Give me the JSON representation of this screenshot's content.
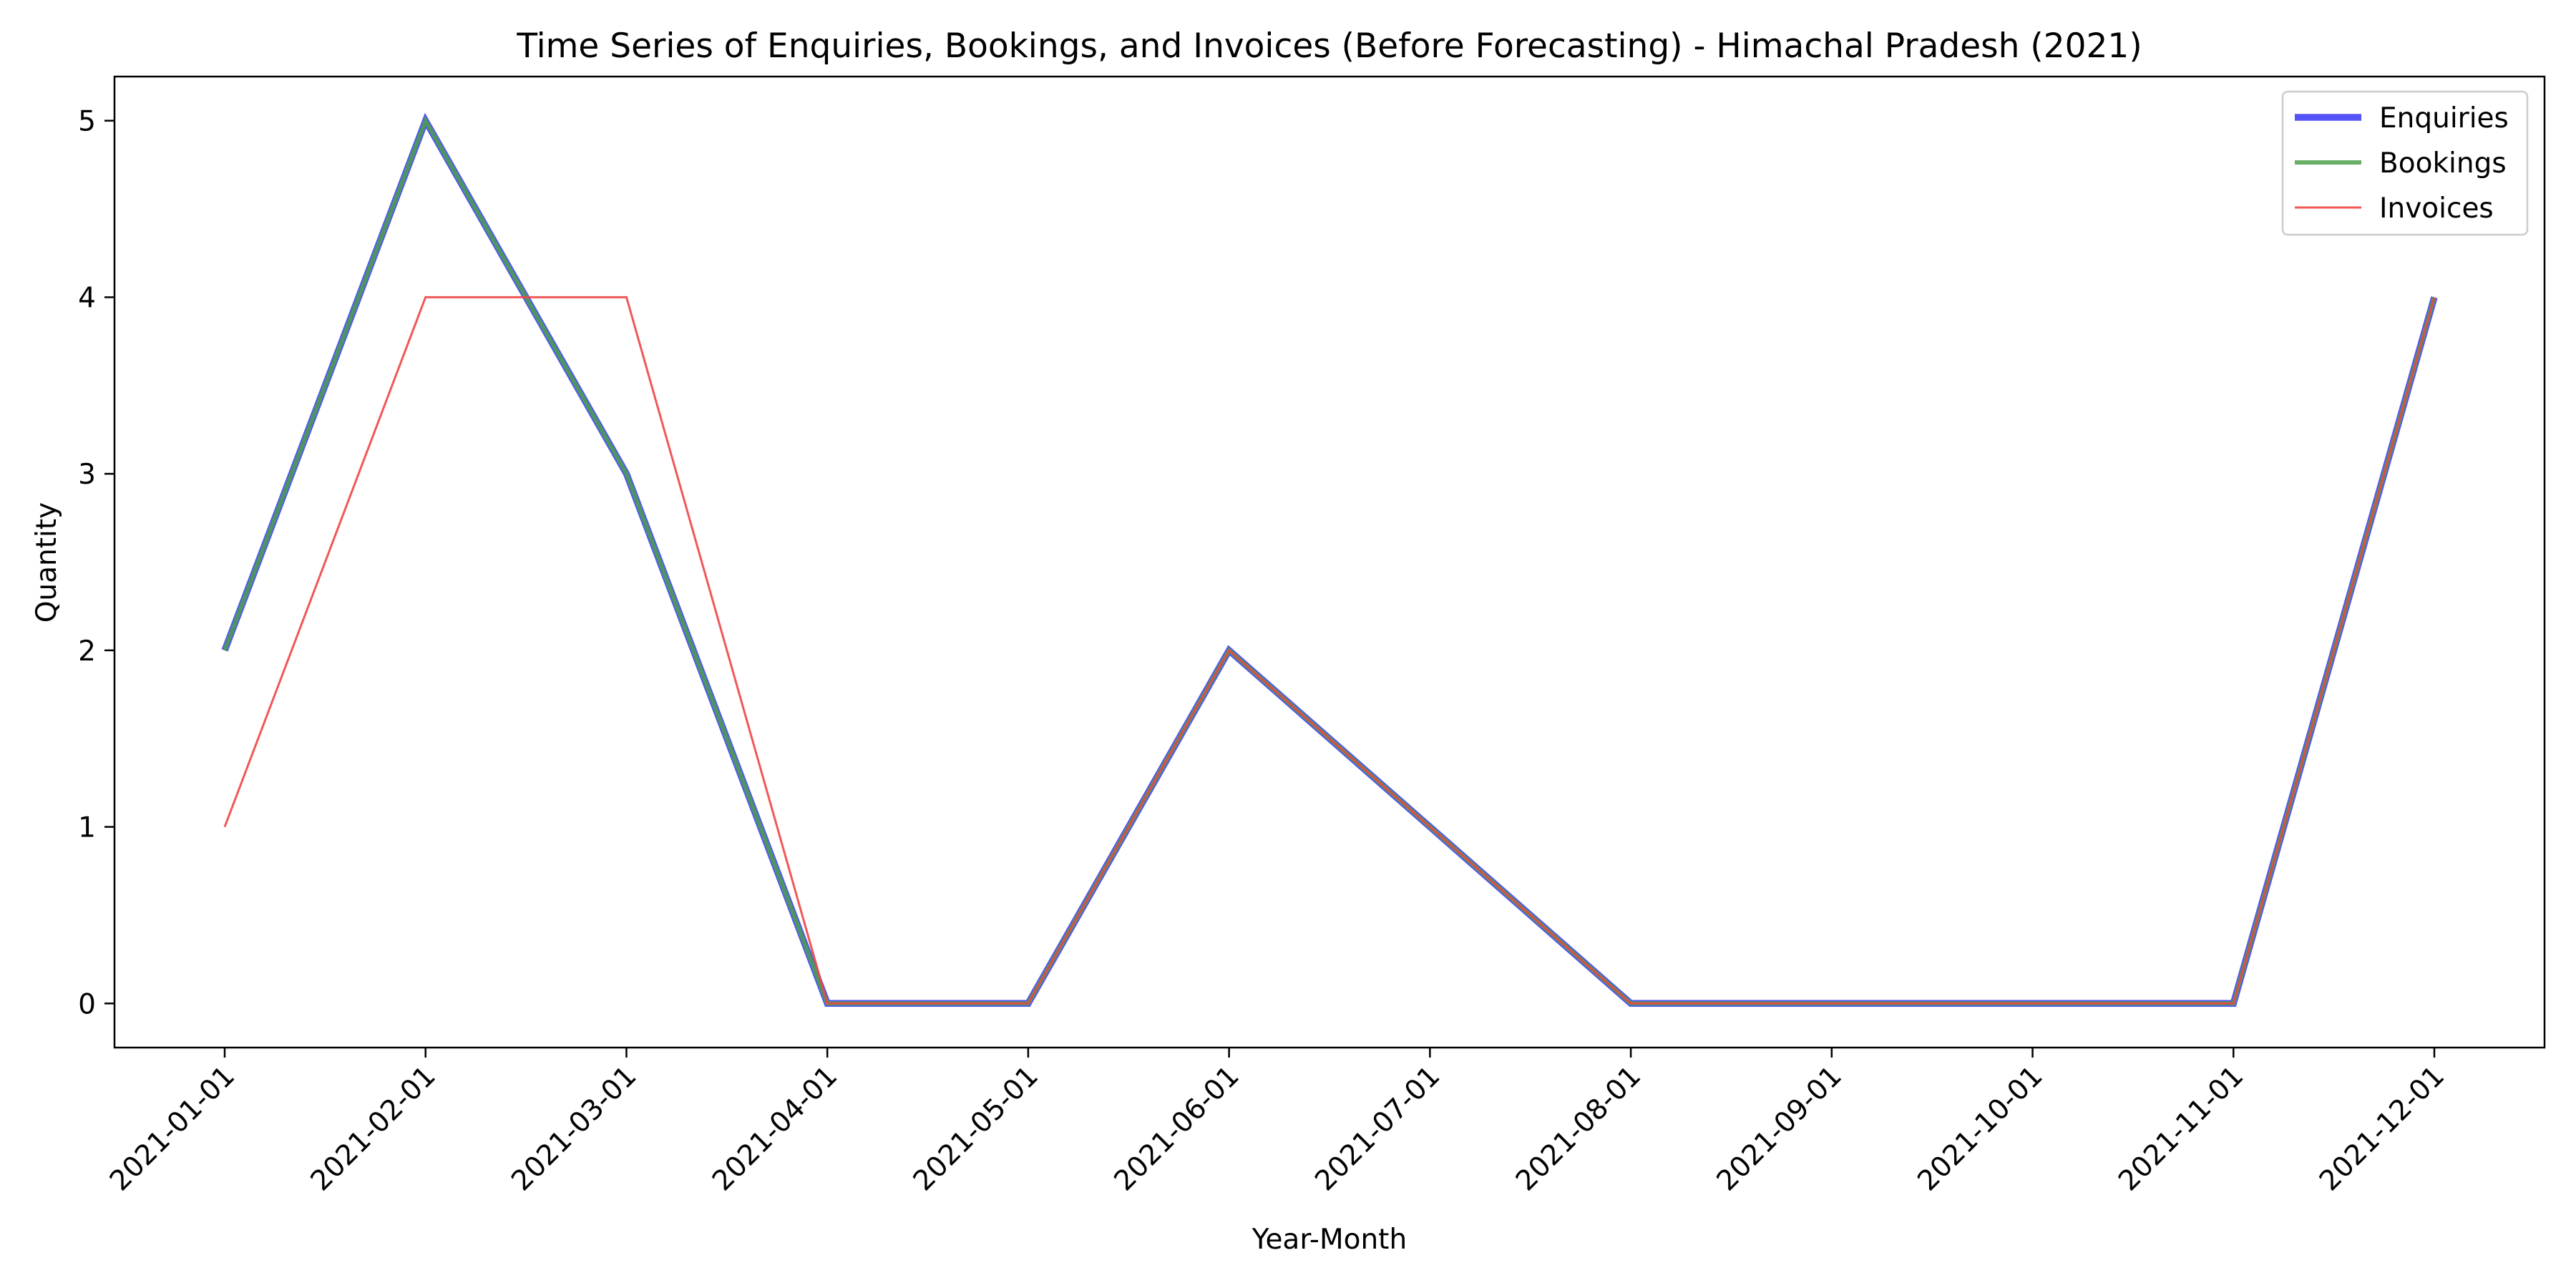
{
  "chart_data": {
    "type": "line",
    "title": "Time Series of Enquiries, Bookings, and Invoices (Before Forecasting) - Himachal Pradesh (2021)",
    "xlabel": "Year-Month",
    "ylabel": "Quantity",
    "x": [
      "2021-01-01",
      "2021-02-01",
      "2021-03-01",
      "2021-04-01",
      "2021-05-01",
      "2021-06-01",
      "2021-07-01",
      "2021-08-01",
      "2021-09-01",
      "2021-10-01",
      "2021-11-01",
      "2021-12-01"
    ],
    "ylim": [
      -0.25,
      5.25
    ],
    "yticks": [
      0,
      1,
      2,
      3,
      4,
      5
    ],
    "grid": false,
    "legend_position": "top-right",
    "series": [
      {
        "name": "Enquiries",
        "color": "#4a4af5",
        "values": [
          2,
          5,
          3,
          0,
          0,
          2,
          null,
          0,
          null,
          null,
          0,
          4
        ]
      },
      {
        "name": "Bookings",
        "color": "#4ca04c",
        "values": [
          2,
          5,
          3,
          0,
          0,
          2,
          null,
          0,
          null,
          null,
          0,
          4
        ]
      },
      {
        "name": "Invoices",
        "color": "#f04545",
        "values": [
          1,
          4,
          4,
          0,
          0,
          2,
          null,
          0,
          null,
          null,
          0,
          4
        ]
      }
    ]
  }
}
